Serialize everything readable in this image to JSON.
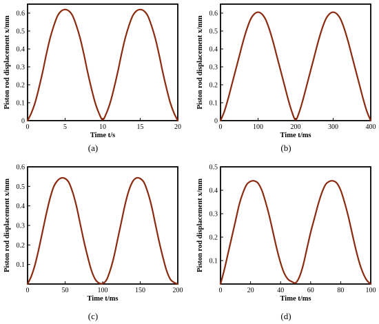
{
  "chart_data": [
    {
      "type": "line",
      "caption": "(a)",
      "xlabel": "Time t/s",
      "ylabel": "Piston rod displacement x/mm",
      "xlim": [
        0,
        20
      ],
      "ylim": [
        0,
        0.65
      ],
      "xticks": [
        "0",
        "5",
        "10",
        "15",
        "20"
      ],
      "yticks": [
        "0",
        "0.1",
        "0.2",
        "0.3",
        "0.4",
        "0.5",
        "0.6"
      ],
      "color": "#8b2a0f",
      "grid": false,
      "series": [
        {
          "x": [
            0,
            0.5,
            1,
            1.5,
            2,
            2.5,
            3,
            3.5,
            4,
            4.5,
            5,
            5.5,
            6,
            6.5,
            7,
            7.5,
            8,
            8.5,
            9,
            9.5,
            10,
            10.5,
            11,
            11.5,
            12,
            12.5,
            13,
            13.5,
            14,
            14.5,
            15,
            15.5,
            16,
            16.5,
            17,
            17.5,
            18,
            18.5,
            19,
            19.5,
            20
          ],
          "y": [
            0,
            0.042,
            0.1,
            0.18,
            0.27,
            0.37,
            0.46,
            0.53,
            0.585,
            0.612,
            0.62,
            0.612,
            0.585,
            0.53,
            0.46,
            0.37,
            0.27,
            0.18,
            0.1,
            0.042,
            0.005,
            0.042,
            0.1,
            0.18,
            0.27,
            0.37,
            0.46,
            0.53,
            0.585,
            0.612,
            0.62,
            0.612,
            0.585,
            0.53,
            0.46,
            0.37,
            0.27,
            0.18,
            0.1,
            0.042,
            0
          ]
        }
      ]
    },
    {
      "type": "line",
      "caption": "(b)",
      "xlabel": "Time t/ms",
      "ylabel": "Piston rod displacement x/mm",
      "xlim": [
        0,
        400
      ],
      "ylim": [
        0,
        0.65
      ],
      "xticks": [
        "0",
        "100",
        "200",
        "300",
        "400"
      ],
      "yticks": [
        "0",
        "0.1",
        "0.2",
        "0.3",
        "0.4",
        "0.5",
        "0.6"
      ],
      "color": "#8b2a0f",
      "grid": false,
      "series": [
        {
          "x": [
            0,
            10,
            20,
            30,
            40,
            50,
            60,
            70,
            80,
            90,
            100,
            110,
            120,
            130,
            140,
            150,
            160,
            170,
            180,
            190,
            200,
            210,
            220,
            230,
            240,
            250,
            260,
            270,
            280,
            290,
            300,
            310,
            320,
            330,
            340,
            350,
            360,
            370,
            380,
            390,
            400
          ],
          "y": [
            0,
            0.05,
            0.12,
            0.2,
            0.28,
            0.36,
            0.44,
            0.51,
            0.565,
            0.595,
            0.605,
            0.595,
            0.565,
            0.51,
            0.44,
            0.36,
            0.28,
            0.2,
            0.12,
            0.05,
            0.005,
            0.05,
            0.12,
            0.2,
            0.28,
            0.36,
            0.44,
            0.51,
            0.565,
            0.595,
            0.605,
            0.595,
            0.565,
            0.51,
            0.44,
            0.36,
            0.28,
            0.2,
            0.12,
            0.05,
            0
          ]
        }
      ]
    },
    {
      "type": "line",
      "caption": "(c)",
      "xlabel": "Time t/ms",
      "ylabel": "Piston rod displacement x/mm",
      "xlim": [
        0,
        200
      ],
      "ylim": [
        0,
        0.6
      ],
      "xticks": [
        "0",
        "50",
        "100",
        "150",
        "200"
      ],
      "yticks": [
        "0.1",
        "0.2",
        "0.3",
        "0.4",
        "0.5",
        "0.6"
      ],
      "color": "#8b2a0f",
      "grid": false,
      "series": [
        {
          "x": [
            0,
            5,
            10,
            15,
            20,
            25,
            30,
            35,
            40,
            45,
            50,
            55,
            60,
            65,
            70,
            75,
            80,
            85,
            90,
            95,
            100,
            105,
            110,
            115,
            120,
            125,
            130,
            135,
            140,
            145,
            150,
            155,
            160,
            165,
            170,
            175,
            180,
            185,
            190,
            195,
            200
          ],
          "y": [
            0,
            0.04,
            0.1,
            0.18,
            0.27,
            0.36,
            0.44,
            0.5,
            0.53,
            0.543,
            0.54,
            0.52,
            0.47,
            0.4,
            0.31,
            0.22,
            0.14,
            0.07,
            0.025,
            0.005,
            0.003,
            0.02,
            0.07,
            0.14,
            0.23,
            0.32,
            0.41,
            0.48,
            0.525,
            0.543,
            0.54,
            0.52,
            0.47,
            0.4,
            0.31,
            0.22,
            0.14,
            0.07,
            0.025,
            0.008,
            0
          ]
        }
      ]
    },
    {
      "type": "line",
      "caption": "(d)",
      "xlabel": "Time t/ms",
      "ylabel": "Piston rod displacement x/mm",
      "xlim": [
        0,
        100
      ],
      "ylim": [
        0,
        0.5
      ],
      "xticks": [
        "0",
        "20",
        "40",
        "60",
        "80",
        "100"
      ],
      "yticks": [
        "0.1",
        "0.2",
        "0.3",
        "0.4",
        "0.5"
      ],
      "color": "#8b2a0f",
      "grid": false,
      "series": [
        {
          "x": [
            0,
            2.5,
            5,
            7.5,
            10,
            12.5,
            15,
            17.5,
            20,
            22.5,
            25,
            27.5,
            30,
            32.5,
            35,
            37.5,
            40,
            42.5,
            45,
            47.5,
            50,
            52.5,
            55,
            57.5,
            60,
            62.5,
            65,
            67.5,
            70,
            72.5,
            75,
            77.5,
            80,
            82.5,
            85,
            87.5,
            90,
            92.5,
            95,
            97.5,
            100
          ],
          "y": [
            0,
            0.06,
            0.13,
            0.2,
            0.27,
            0.34,
            0.39,
            0.425,
            0.438,
            0.44,
            0.43,
            0.4,
            0.35,
            0.29,
            0.22,
            0.15,
            0.09,
            0.045,
            0.02,
            0.01,
            0.005,
            0.03,
            0.08,
            0.15,
            0.22,
            0.28,
            0.34,
            0.39,
            0.425,
            0.438,
            0.44,
            0.43,
            0.4,
            0.35,
            0.29,
            0.22,
            0.15,
            0.09,
            0.045,
            0.015,
            0
          ]
        }
      ]
    }
  ]
}
